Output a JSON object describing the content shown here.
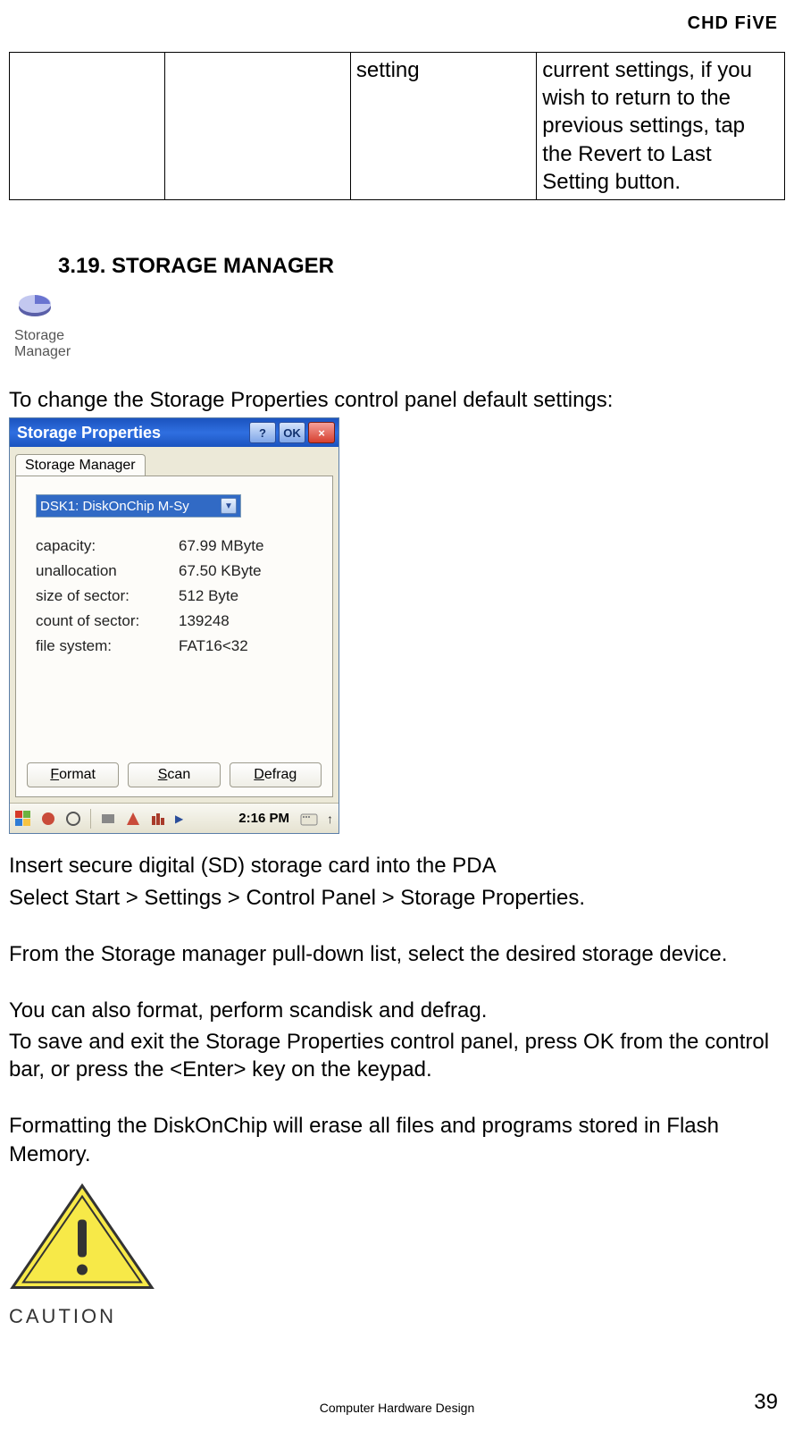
{
  "header": {
    "brand": "CHD FiVE"
  },
  "top_table": {
    "cell3": "setting",
    "cell4": "current settings, if you wish to return to the previous settings, tap the Revert to Last Setting button."
  },
  "section": {
    "heading": "3.19. STORAGE MANAGER"
  },
  "storage_icon": {
    "caption_line1": "Storage",
    "caption_line2": "Manager"
  },
  "intro_line": "To change the Storage Properties control panel default settings:",
  "dialog": {
    "title": "Storage Properties",
    "help": "?",
    "ok": "OK",
    "close": "×",
    "tab": "Storage Manager",
    "select_value": "DSK1: DiskOnChip M-Sy",
    "info": [
      {
        "label": "capacity:",
        "value": "67.99 MByte"
      },
      {
        "label": "unallocation",
        "value": "67.50 KByte"
      },
      {
        "label": "size of sector:",
        "value": "512 Byte"
      },
      {
        "label": "count of sector:",
        "value": "139248"
      },
      {
        "label": "file system:",
        "value": "FAT16<32"
      }
    ],
    "buttons": {
      "format": "Format",
      "scan": "Scan",
      "defrag": "Defrag"
    },
    "taskbar": {
      "time": "2:16 PM"
    }
  },
  "paragraphs": {
    "p1": "Insert secure digital (SD) storage card into the PDA",
    "p2": " Select Start > Settings > Control Panel > Storage Properties.",
    "p3": "From the Storage manager pull-down list, select the desired storage device.",
    "p4": "You can also format, perform scandisk and defrag.",
    "p5": "To save and exit the Storage Properties control panel, press OK from the control bar, or press the <Enter> key on the keypad.",
    "p6": "Formatting the DiskOnChip will erase all files and programs stored in Flash Memory."
  },
  "caution": {
    "label": "CAUTION"
  },
  "footer": {
    "center": "Computer Hardware Design",
    "page": "39"
  }
}
